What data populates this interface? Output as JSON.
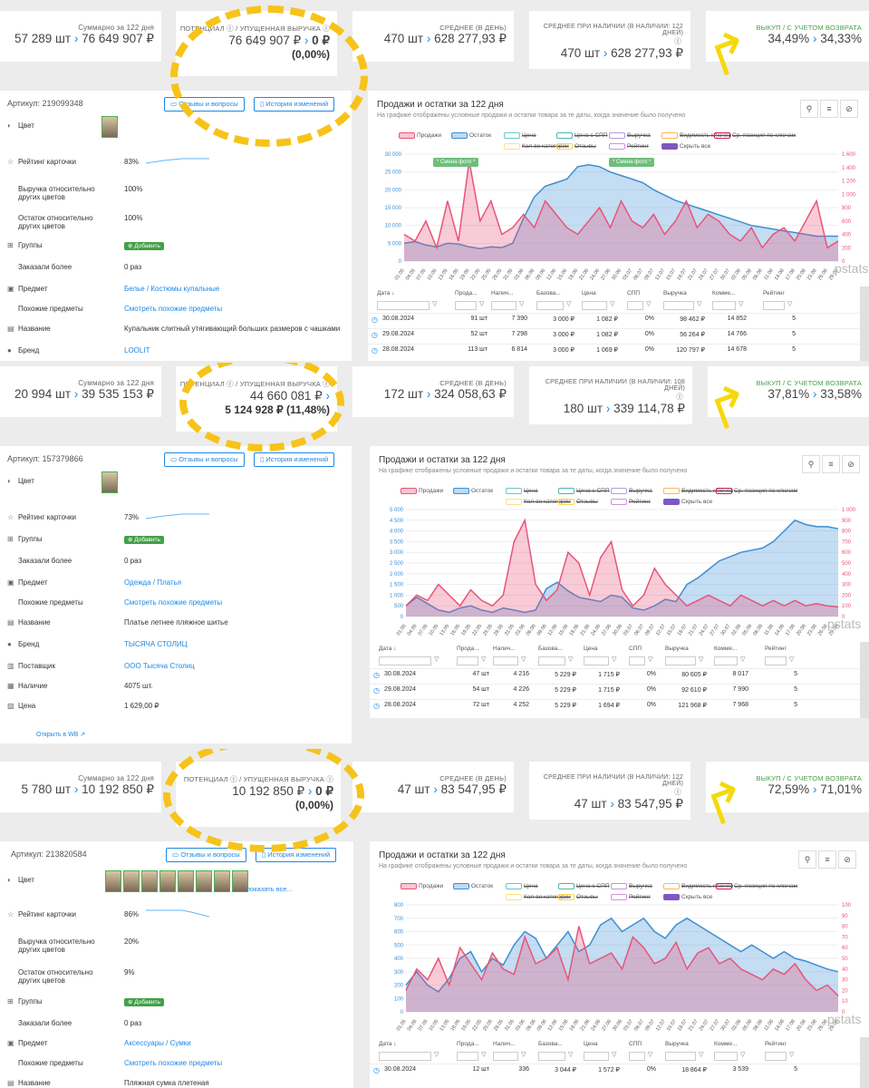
{
  "blocks": [
    {
      "top_stats": {
        "sum_label": "Суммарно за 122 дня",
        "sum_value": "57 289 шт",
        "sum_rub": "76 649 907 ₽",
        "pot_label": "Потенциал ⓘ / Упущенная выручка ⓘ",
        "pot_value": "76 649 907 ₽",
        "pot_lost": "0 ₽",
        "pot_pct": "(0,00%)",
        "avg_label": "Среднее (в день)",
        "avg_value": "470 шт",
        "avg_rub": "628 277,93 ₽",
        "avg_avail_label": "Среднее при наличии (в наличии: 122 дней)",
        "avg_avail_value": "470 шт",
        "avg_avail_rub": "628 277,93 ₽",
        "buyout_label": "Выкуп / с учетом возврата",
        "buyout_value": "34,49%",
        "buyout_ret": "34,33%"
      },
      "article": "Артикул: 219099348",
      "btn_reviews": "Отзывы и вопросы",
      "btn_history": "История изменений",
      "rows": [
        {
          "icon": "palette-icon",
          "label": "Цвет",
          "value": ""
        },
        {
          "icon": "star-icon",
          "label": "Рейтинг карточки",
          "value": "83%"
        },
        {
          "icon": "",
          "label": "Выручка относительно других цветов",
          "value": "100%"
        },
        {
          "icon": "",
          "label": "Остаток относительно других цветов",
          "value": "100%"
        },
        {
          "icon": "groups-icon",
          "label": "Группы",
          "value": "⊕ Добавить"
        },
        {
          "icon": "",
          "label": "Заказали более",
          "value": "0 раз"
        },
        {
          "icon": "box-icon",
          "label": "Предмет",
          "value": "Белье / Костюмы купальные"
        },
        {
          "icon": "",
          "label": "Похожие предметы",
          "value": "Смотреть похожие предметы"
        },
        {
          "icon": "tag-icon",
          "label": "Название",
          "value": "Купальник слитный утягивающий больших размеров с чашками"
        },
        {
          "icon": "brand-icon",
          "label": "Бренд",
          "value": "LOOLIT"
        }
      ],
      "chart_title": "Продажи и остатки за 122 дня",
      "chart_sub": "На графике отображены условные продажи и остатки товара за те даты, когда значение было получено",
      "chart_notes": [
        "* Смена фото *",
        "* Смена фото *"
      ],
      "table": [
        [
          "30.08.2024",
          "91 шт",
          "7 390",
          "3 000 ₽",
          "1 082 ₽",
          "0%",
          "98 462 ₽",
          "14 852",
          "5"
        ],
        [
          "29.08.2024",
          "52 шт",
          "7 298",
          "3 000 ₽",
          "1 082 ₽",
          "0%",
          "56 264 ₽",
          "14 766",
          "5"
        ],
        [
          "28.08.2024",
          "113 шт",
          "6 814",
          "3 000 ₽",
          "1 069 ₽",
          "0%",
          "120 797 ₽",
          "14 678",
          "5"
        ]
      ]
    },
    {
      "top_stats": {
        "sum_label": "Суммарно за 122 дня",
        "sum_value": "20 994 шт",
        "sum_rub": "39 535 153 ₽",
        "pot_label": "Потенциал ⓘ / Упущенная выручка ⓘ",
        "pot_value": "44 660 081 ₽",
        "pot_lost": "5 124 928 ₽ (11,48%)",
        "pot_pct": "",
        "avg_label": "Среднее (в день)",
        "avg_value": "172 шт",
        "avg_rub": "324 058,63 ₽",
        "avg_avail_label": "Среднее при наличии (в наличии: 108 дней)",
        "avg_avail_value": "180 шт",
        "avg_avail_rub": "339 114,78 ₽",
        "buyout_label": "Выкуп / с учетом возврата",
        "buyout_value": "37,81%",
        "buyout_ret": "33,58%"
      },
      "article": "Артикул: 157379866",
      "btn_reviews": "Отзывы и вопросы",
      "btn_history": "История изменений",
      "rows": [
        {
          "icon": "palette-icon",
          "label": "Цвет",
          "value": ""
        },
        {
          "icon": "star-icon",
          "label": "Рейтинг карточки",
          "value": "73%"
        },
        {
          "icon": "groups-icon",
          "label": "Группы",
          "value": "⊕ Добавить"
        },
        {
          "icon": "",
          "label": "Заказали более",
          "value": "0 раз"
        },
        {
          "icon": "box-icon",
          "label": "Предмет",
          "value": "Одежда / Платья"
        },
        {
          "icon": "",
          "label": "Похожие предметы",
          "value": "Смотреть похожие предметы"
        },
        {
          "icon": "tag-icon",
          "label": "Название",
          "value": "Платье летнее пляжное шитье"
        },
        {
          "icon": "brand-icon",
          "label": "Бренд",
          "value": "ТЫСЯЧА СТОЛИЦ"
        },
        {
          "icon": "supplier-icon",
          "label": "Поставщик",
          "value": "ООО Тысяча Столиц"
        },
        {
          "icon": "stock-icon",
          "label": "Наличие",
          "value": "4075 шт."
        },
        {
          "icon": "price-icon",
          "label": "Цена",
          "value": "1 629,00 ₽"
        }
      ],
      "open_wb": "Открыть в WB",
      "chart_title": "Продажи и остатки за 122 дня",
      "chart_sub": "На графике отображены условные продажи и остатки товара за те даты, когда значение было получено",
      "table": [
        [
          "30.08.2024",
          "47 шт",
          "4 216",
          "5 229 ₽",
          "1 715 ₽",
          "0%",
          "80 605 ₽",
          "8 017",
          "5"
        ],
        [
          "29.08.2024",
          "54 шт",
          "4 226",
          "5 229 ₽",
          "1 715 ₽",
          "0%",
          "92 610 ₽",
          "7 990",
          "5"
        ],
        [
          "28.08.2024",
          "72 шт",
          "4 252",
          "5 229 ₽",
          "1 694 ₽",
          "0%",
          "121 968 ₽",
          "7 968",
          "5"
        ]
      ]
    },
    {
      "top_stats": {
        "sum_label": "Суммарно за 122 дня",
        "sum_value": "5 780 шт",
        "sum_rub": "10 192 850 ₽",
        "pot_label": "Потенциал ⓘ / Упущенная выручка ⓘ",
        "pot_value": "10 192 850 ₽",
        "pot_lost": "0 ₽",
        "pot_pct": "(0,00%)",
        "avg_label": "Среднее (в день)",
        "avg_value": "47 шт",
        "avg_rub": "83 547,95 ₽",
        "avg_avail_label": "Среднее при наличии (в наличии: 122 дней)",
        "avg_avail_value": "47 шт",
        "avg_avail_rub": "83 547,95 ₽",
        "buyout_label": "Выкуп / с учетом возврата",
        "buyout_value": "72,59%",
        "buyout_ret": "71,01%"
      },
      "article": "Артикул: 213820584",
      "btn_reviews": "Отзывы и вопросы",
      "btn_history": "История изменений",
      "show_all": "показать все...",
      "rows": [
        {
          "icon": "palette-icon",
          "label": "Цвет",
          "value": ""
        },
        {
          "icon": "star-icon",
          "label": "Рейтинг карточки",
          "value": "86%"
        },
        {
          "icon": "",
          "label": "Выручка относительно других цветов",
          "value": "20%"
        },
        {
          "icon": "",
          "label": "Остаток относительно других цветов",
          "value": "9%"
        },
        {
          "icon": "groups-icon",
          "label": "Группы",
          "value": "⊕ Добавить"
        },
        {
          "icon": "",
          "label": "Заказали более",
          "value": "0 раз"
        },
        {
          "icon": "box-icon",
          "label": "Предмет",
          "value": "Аксессуары / Сумки"
        },
        {
          "icon": "",
          "label": "Похожие предметы",
          "value": "Смотреть похожие предметы"
        },
        {
          "icon": "tag-icon",
          "label": "Название",
          "value": "Пляжная сумка плетеная"
        }
      ],
      "chart_title": "Продажи и остатки за 122 дня",
      "chart_sub": "На графике отображены условные продажи и остатки товара за те даты, когда значение было получено",
      "table": [
        [
          "30.08.2024",
          "12 шт",
          "336",
          "3 044 ₽",
          "1 572 ₽",
          "0%",
          "18 864 ₽",
          "3 539",
          "5"
        ]
      ]
    }
  ],
  "legend": [
    "Продажи",
    "Остаток",
    "Цена",
    "Цена с СПП",
    "Выручка",
    "Видимость ключей",
    "Ср. позиция по ключам",
    "Кол-во категорий",
    "Отзывы",
    "Рейтинг",
    "Скрыть все"
  ],
  "table_headers": [
    "Дата ↓",
    "Прода...",
    "Налич...",
    "Базова...",
    "Цена",
    "СПП",
    "Выручка",
    "Комме...",
    "Рейтинг"
  ],
  "side_tabs": [
    "Свобод",
    "Фи"
  ],
  "watermark": "pstats",
  "colors": {
    "sales": "#e8547a",
    "stock": "#3d8fd4",
    "accent": "#1e88e5",
    "green": "#43a047",
    "yellow": "#f7c31a"
  },
  "chart_data": [
    {
      "type": "area",
      "title": "Продажи и остатки за 122 дня",
      "x": [
        "01.05",
        "04.05",
        "07.05",
        "10.05",
        "13.05",
        "16.05",
        "19.05",
        "22.05",
        "25.05",
        "28.05",
        "31.05",
        "03.06",
        "06.06",
        "09.06",
        "12.06",
        "15.06",
        "18.06",
        "21.06",
        "24.06",
        "27.06",
        "30.06",
        "03.07",
        "06.07",
        "09.07",
        "12.07",
        "15.07",
        "18.07",
        "21.07",
        "24.07",
        "27.07",
        "30.07",
        "02.08",
        "05.08",
        "08.08",
        "11.08",
        "14.08",
        "17.08",
        "20.08",
        "23.08",
        "26.08",
        "29.08"
      ],
      "y_left_ticks": [
        "0",
        "5 000",
        "10 000",
        "15 000",
        "20 000",
        "25 000",
        "30 000"
      ],
      "y_right_ticks": [
        "0",
        "200",
        "400",
        "600",
        "800",
        "1 000",
        "1 200",
        "1 400",
        "1 600"
      ],
      "series": [
        {
          "name": "Остаток",
          "axis": "left",
          "values": [
            5000,
            5500,
            4500,
            4000,
            5000,
            4800,
            4000,
            3500,
            4000,
            3800,
            5000,
            12000,
            18000,
            21000,
            22000,
            23000,
            26500,
            27000,
            26500,
            25000,
            24000,
            23000,
            22000,
            20000,
            18500,
            17000,
            16000,
            15000,
            14000,
            13000,
            12000,
            11000,
            10000,
            9500,
            9000,
            8500,
            8000,
            7500,
            7000,
            7000,
            7000
          ]
        },
        {
          "name": "Продажи",
          "axis": "right",
          "values": [
            400,
            300,
            600,
            200,
            900,
            300,
            1500,
            600,
            900,
            400,
            500,
            700,
            500,
            900,
            700,
            500,
            400,
            600,
            800,
            500,
            900,
            600,
            500,
            700,
            400,
            600,
            900,
            500,
            700,
            600,
            400,
            300,
            500,
            200,
            400,
            500,
            300,
            600,
            900,
            200,
            300
          ]
        }
      ]
    },
    {
      "type": "area",
      "title": "Продажи и остатки за 122 дня",
      "x": [
        "01.05",
        "04.05",
        "07.05",
        "10.05",
        "13.05",
        "16.05",
        "19.05",
        "22.05",
        "25.05",
        "28.05",
        "31.05",
        "03.06",
        "06.06",
        "09.06",
        "12.06",
        "15.06",
        "18.06",
        "21.06",
        "24.06",
        "27.06",
        "30.06",
        "03.07",
        "06.07",
        "09.07",
        "12.07",
        "15.07",
        "18.07",
        "21.07",
        "24.07",
        "27.07",
        "30.07",
        "02.08",
        "05.08",
        "08.08",
        "11.08",
        "14.08",
        "17.08",
        "20.08",
        "23.08",
        "26.08",
        "29.08"
      ],
      "y_left_ticks": [
        "0",
        "500",
        "1 000",
        "1 500",
        "2 000",
        "2 500",
        "3 000",
        "3 500",
        "4 000",
        "4 500",
        "5 000"
      ],
      "y_right_ticks": [
        "0",
        "100",
        "200",
        "300",
        "400",
        "500",
        "600",
        "700",
        "800",
        "900",
        "1 000"
      ],
      "series": [
        {
          "name": "Остаток",
          "axis": "left",
          "values": [
            500,
            900,
            600,
            300,
            200,
            400,
            500,
            300,
            200,
            400,
            300,
            200,
            300,
            1300,
            1600,
            1200,
            900,
            800,
            700,
            1000,
            900,
            400,
            300,
            500,
            800,
            700,
            1500,
            1800,
            2200,
            2600,
            2800,
            3000,
            3100,
            3200,
            3500,
            4000,
            4500,
            4300,
            4200,
            4200,
            4100
          ]
        },
        {
          "name": "Продажи",
          "axis": "right",
          "values": [
            100,
            200,
            150,
            300,
            200,
            100,
            250,
            150,
            100,
            200,
            700,
            900,
            300,
            150,
            250,
            600,
            500,
            200,
            550,
            700,
            250,
            100,
            200,
            450,
            300,
            200,
            100,
            150,
            200,
            150,
            100,
            200,
            150,
            100,
            150,
            100,
            150,
            100,
            120,
            100,
            90
          ]
        }
      ]
    },
    {
      "type": "area",
      "title": "Продажи и остатки за 122 дня",
      "x": [
        "01.05",
        "04.05",
        "07.05",
        "10.05",
        "13.05",
        "16.05",
        "19.05",
        "22.05",
        "25.05",
        "28.05",
        "31.05",
        "03.06",
        "06.06",
        "09.06",
        "12.06",
        "15.06",
        "18.06",
        "21.06",
        "24.06",
        "27.06",
        "30.06",
        "03.07",
        "06.07",
        "09.07",
        "12.07",
        "15.07",
        "18.07",
        "21.07",
        "24.07",
        "27.07",
        "30.07",
        "02.08",
        "05.08",
        "08.08",
        "11.08",
        "14.08",
        "17.08",
        "20.08",
        "23.08",
        "26.08",
        "29.08"
      ],
      "y_left_ticks": [
        "0",
        "100",
        "200",
        "300",
        "400",
        "500",
        "600",
        "700",
        "800"
      ],
      "y_right_ticks": [
        "0",
        "10",
        "20",
        "30",
        "40",
        "50",
        "60",
        "70",
        "80",
        "90",
        "100"
      ],
      "series": [
        {
          "name": "Остаток",
          "axis": "left",
          "values": [
            200,
            300,
            200,
            150,
            250,
            400,
            450,
            300,
            400,
            350,
            500,
            600,
            550,
            400,
            500,
            600,
            450,
            500,
            650,
            700,
            600,
            650,
            700,
            600,
            550,
            650,
            700,
            650,
            600,
            550,
            500,
            450,
            500,
            450,
            400,
            450,
            400,
            380,
            350,
            320,
            300
          ]
        },
        {
          "name": "Продажи",
          "axis": "right",
          "values": [
            20,
            40,
            30,
            50,
            25,
            60,
            45,
            30,
            55,
            40,
            35,
            70,
            45,
            50,
            60,
            30,
            80,
            45,
            50,
            55,
            40,
            70,
            60,
            45,
            50,
            65,
            40,
            55,
            60,
            45,
            50,
            40,
            35,
            30,
            40,
            35,
            45,
            30,
            20,
            25,
            15
          ]
        }
      ]
    }
  ]
}
